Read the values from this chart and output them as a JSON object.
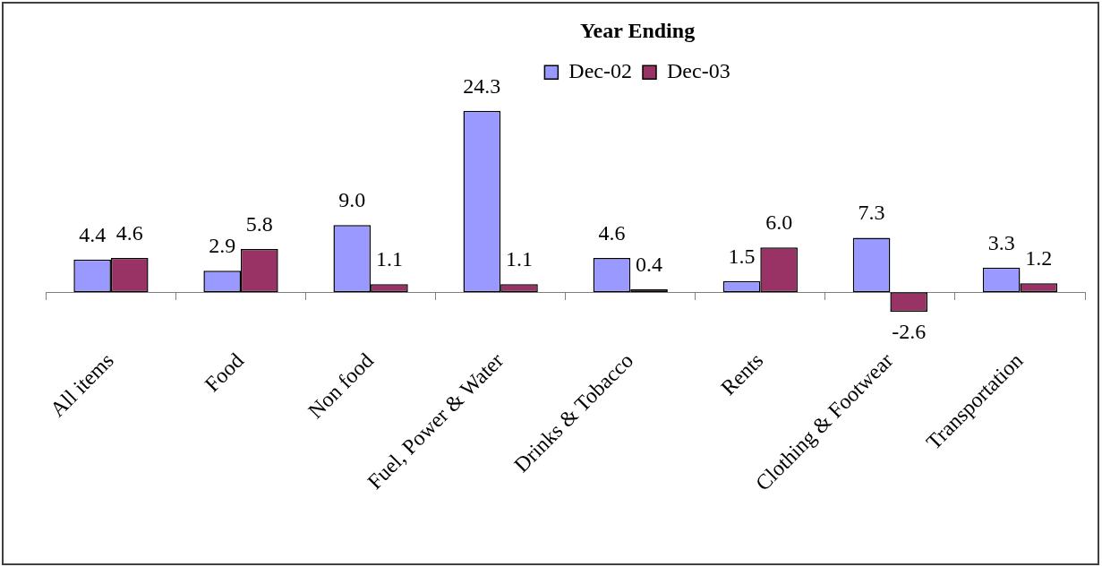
{
  "chart_data": {
    "type": "bar",
    "legend_title": "Year Ending",
    "legend": "top",
    "categories": [
      "All items",
      "Food",
      "Non food",
      "Fuel, Power & Water",
      "Drinks & Tobacco",
      "Rents",
      "Clothing & Footwear",
      "Transportation"
    ],
    "series": [
      {
        "name": "Dec-02",
        "color": "#9999ff",
        "values": [
          4.4,
          2.9,
          9.0,
          24.3,
          4.6,
          1.5,
          7.3,
          3.3
        ],
        "value_labels": [
          "4.4",
          "2.9",
          "9.0",
          "24.3",
          "4.6",
          "1.5",
          "7.3",
          "3.3"
        ]
      },
      {
        "name": "Dec-03",
        "color": "#993366",
        "values": [
          4.6,
          5.8,
          1.1,
          1.1,
          0.4,
          6.0,
          -2.6,
          1.2
        ],
        "value_labels": [
          "4.6",
          "5.8",
          "1.1",
          "1.1",
          "0.4",
          "6.0",
          "-2.6",
          "1.2"
        ]
      }
    ]
  }
}
